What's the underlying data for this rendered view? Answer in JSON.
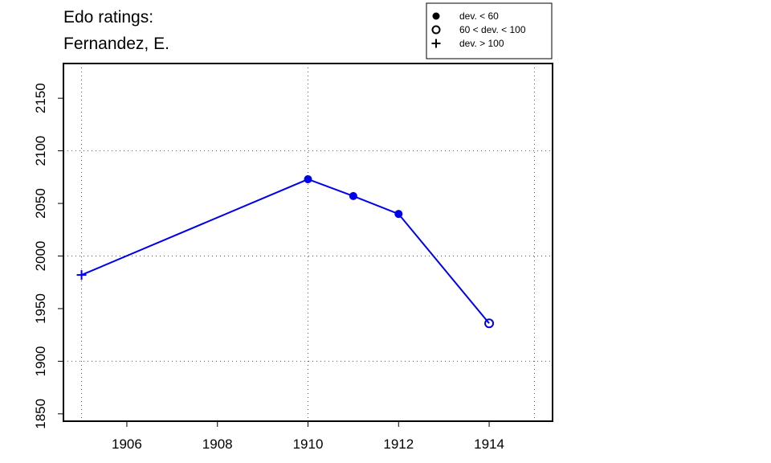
{
  "title": [
    "Edo ratings:",
    "Fernandez, E."
  ],
  "chart_data": {
    "type": "line",
    "title": "Edo ratings: Fernandez, E.",
    "xlabel": "",
    "ylabel": "",
    "xlim": [
      1904.6,
      1915.4
    ],
    "ylim": [
      1843,
      2183
    ],
    "x_ticks": [
      1906,
      1908,
      1910,
      1912,
      1914
    ],
    "y_ticks": [
      1850,
      1900,
      1950,
      2000,
      2050,
      2100,
      2150
    ],
    "x_grid": [
      1905,
      1910,
      1915
    ],
    "y_grid": [
      1900,
      2000,
      2100
    ],
    "grid": true,
    "series_color": "#0000ee",
    "points": [
      {
        "x": 1905,
        "y": 1982,
        "marker": "plus"
      },
      {
        "x": 1910,
        "y": 2073,
        "marker": "filled"
      },
      {
        "x": 1911,
        "y": 2057,
        "marker": "filled"
      },
      {
        "x": 1912,
        "y": 2040,
        "marker": "filled"
      },
      {
        "x": 1914,
        "y": 1936,
        "marker": "open"
      }
    ],
    "legend": {
      "placement": "top-right",
      "entries": [
        {
          "marker": "filled",
          "label": "dev. < 60"
        },
        {
          "marker": "open",
          "label": "60 < dev. < 100"
        },
        {
          "marker": "plus",
          "label": "dev. > 100"
        }
      ]
    }
  }
}
